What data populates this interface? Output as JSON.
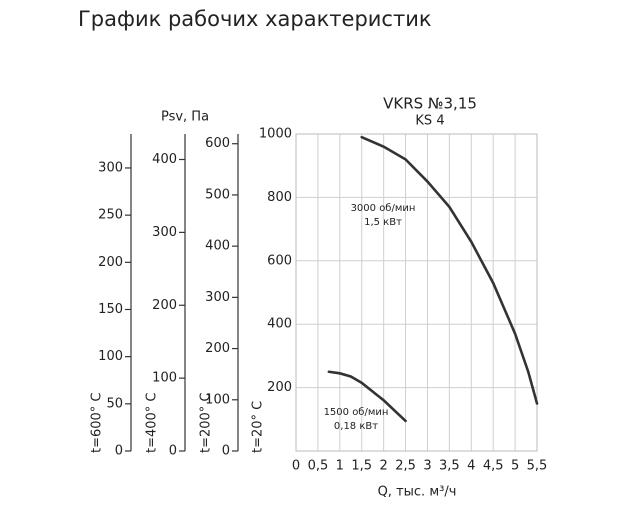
{
  "page_title": "График рабочих характеристик",
  "chart_data": {
    "type": "line",
    "title": "VKRS №3,15",
    "subtitle": "KS 4",
    "y_label": "Psv, Па",
    "x_label": "Q, тыс. м³/ч",
    "y_temperature": "t=20° C",
    "xlim": [
      0,
      5.5
    ],
    "xticks": [
      0,
      {
        "value": 0.5,
        "label": "0,5"
      },
      1,
      {
        "value": 1.5,
        "label": "1,5"
      },
      2,
      {
        "value": 2.5,
        "label": "2,5"
      },
      3,
      {
        "value": 3.5,
        "label": "3,5"
      },
      4,
      {
        "value": 4.5,
        "label": "4,5"
      },
      5,
      {
        "value": 5.5,
        "label": "5,5"
      }
    ],
    "ylim": [
      0,
      1000
    ],
    "yticks": [
      200,
      400,
      600,
      800,
      1000
    ],
    "grid": true,
    "series": [
      {
        "name": "3000 об/мин",
        "power": "1,5 кВт",
        "color": "#333333",
        "x": [
          1.5,
          2,
          2.5,
          3,
          3.5,
          4,
          4.5,
          5,
          5.3,
          5.5
        ],
        "values": [
          990,
          960,
          920,
          850,
          770,
          660,
          530,
          370,
          250,
          150
        ]
      },
      {
        "name": "1500 об/мин",
        "power": "0,18 кВт",
        "color": "#333333",
        "x": [
          0.75,
          1,
          1.25,
          1.5,
          2,
          2.5
        ],
        "values": [
          250,
          245,
          235,
          215,
          160,
          95
        ]
      }
    ],
    "temperature_axes": [
      {
        "label": "t=600° C",
        "ylim": [
          0,
          336
        ],
        "yticks": [
          0,
          50,
          100,
          150,
          200,
          250,
          300
        ]
      },
      {
        "label": "t=400° C",
        "ylim": [
          0,
          435
        ],
        "yticks": [
          0,
          100,
          200,
          300,
          400
        ]
      },
      {
        "label": "t=200° C",
        "ylim": [
          0,
          619
        ],
        "yticks": [
          0,
          100,
          200,
          300,
          400,
          500,
          600
        ]
      }
    ]
  }
}
